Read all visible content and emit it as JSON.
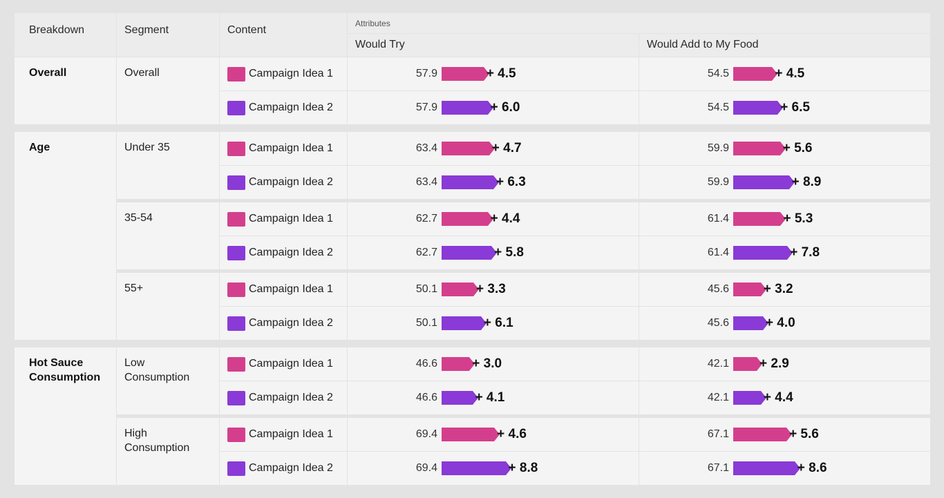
{
  "header": {
    "breakdown": "Breakdown",
    "segment": "Segment",
    "content": "Content",
    "attributes": "Attributes",
    "col1": "Would Try",
    "col2": "Would Add to My Food"
  },
  "colors": {
    "idea1": "#d43f8d",
    "idea2": "#8a3ad6"
  },
  "chart_data": {
    "type": "table",
    "title": "",
    "columns": [
      "Would Try",
      "Would Add to My Food"
    ],
    "groups": [
      {
        "breakdown": "Overall",
        "segments": [
          {
            "segment": "Overall",
            "rows": [
              {
                "content": "Campaign Idea 1",
                "try_base": "57.9",
                "try_delta": "+ 4.5",
                "add_base": "54.5",
                "add_delta": "+ 4.5"
              },
              {
                "content": "Campaign Idea 2",
                "try_base": "57.9",
                "try_delta": "+ 6.0",
                "add_base": "54.5",
                "add_delta": "+ 6.5"
              }
            ]
          }
        ]
      },
      {
        "breakdown": "Age",
        "segments": [
          {
            "segment": "Under 35",
            "rows": [
              {
                "content": "Campaign Idea 1",
                "try_base": "63.4",
                "try_delta": "+ 4.7",
                "add_base": "59.9",
                "add_delta": "+ 5.6"
              },
              {
                "content": "Campaign Idea 2",
                "try_base": "63.4",
                "try_delta": "+ 6.3",
                "add_base": "59.9",
                "add_delta": "+ 8.9"
              }
            ]
          },
          {
            "segment": "35-54",
            "rows": [
              {
                "content": "Campaign Idea 1",
                "try_base": "62.7",
                "try_delta": "+ 4.4",
                "add_base": "61.4",
                "add_delta": "+ 5.3"
              },
              {
                "content": "Campaign Idea 2",
                "try_base": "62.7",
                "try_delta": "+ 5.8",
                "add_base": "61.4",
                "add_delta": "+ 7.8"
              }
            ]
          },
          {
            "segment": "55+",
            "rows": [
              {
                "content": "Campaign Idea 1",
                "try_base": "50.1",
                "try_delta": "+ 3.3",
                "add_base": "45.6",
                "add_delta": "+ 3.2"
              },
              {
                "content": "Campaign Idea 2",
                "try_base": "50.1",
                "try_delta": "+ 6.1",
                "add_base": "45.6",
                "add_delta": "+ 4.0"
              }
            ]
          }
        ]
      },
      {
        "breakdown": "Hot Sauce Consumption",
        "segments": [
          {
            "segment": "Low Consumption",
            "rows": [
              {
                "content": "Campaign Idea 1",
                "try_base": "46.6",
                "try_delta": "+ 3.0",
                "add_base": "42.1",
                "add_delta": "+ 2.9"
              },
              {
                "content": "Campaign Idea 2",
                "try_base": "46.6",
                "try_delta": "+ 4.1",
                "add_base": "42.1",
                "add_delta": "+ 4.4"
              }
            ]
          },
          {
            "segment": "High Consumption",
            "rows": [
              {
                "content": "Campaign Idea 1",
                "try_base": "69.4",
                "try_delta": "+ 4.6",
                "add_base": "67.1",
                "add_delta": "+ 5.6"
              },
              {
                "content": "Campaign Idea 2",
                "try_base": "69.4",
                "try_delta": "+ 8.8",
                "add_base": "67.1",
                "add_delta": "+ 8.6"
              }
            ]
          }
        ]
      }
    ]
  }
}
